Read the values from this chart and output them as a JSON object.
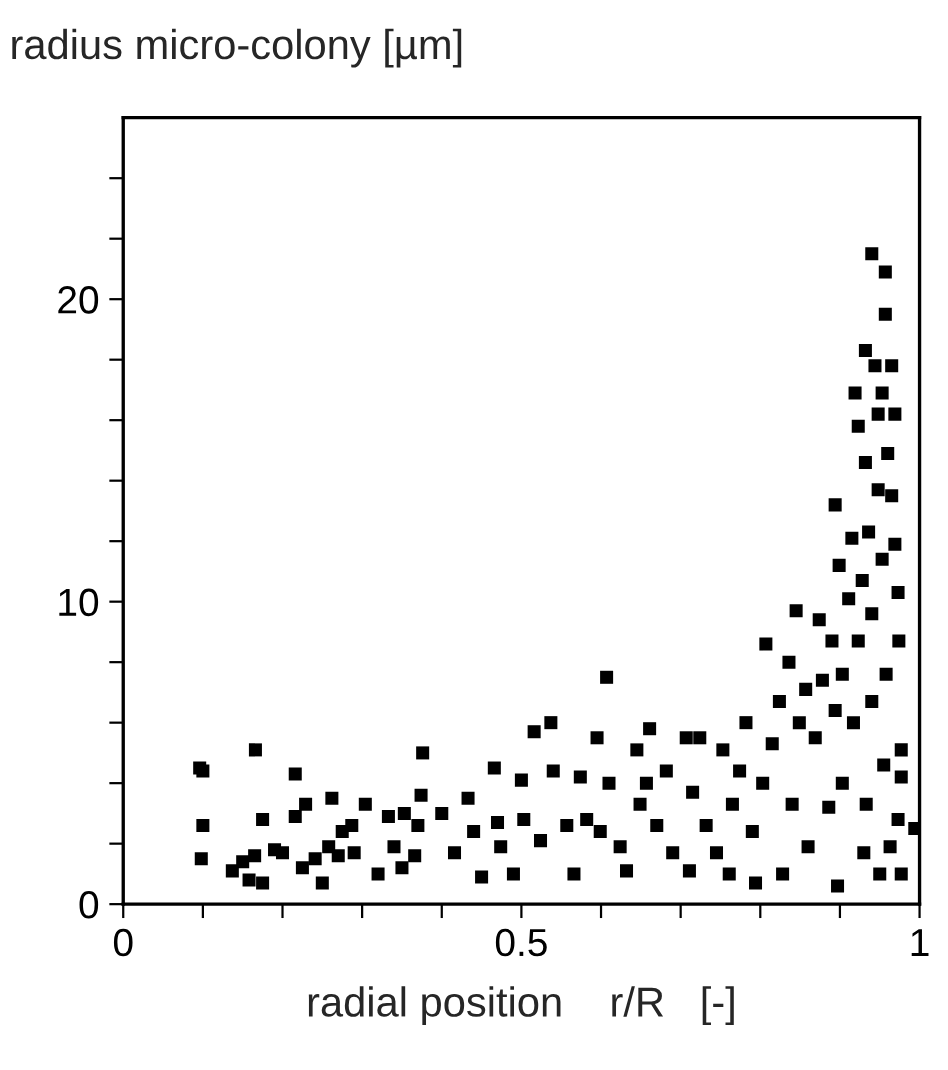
{
  "chart_data": {
    "type": "scatter",
    "ylabel": "radius micro-colony [µm]",
    "xlabel": "radial position    r/R   [-]",
    "marker": "square",
    "grid": false,
    "legend": false,
    "xlim": [
      0,
      1
    ],
    "ylim": [
      0,
      26
    ],
    "xticks": [
      0,
      {
        "value": 0.1,
        "label": null
      },
      {
        "value": 0.2,
        "label": null
      },
      {
        "value": 0.3,
        "label": null
      },
      {
        "value": 0.4,
        "label": null
      },
      0.5,
      {
        "value": 0.6,
        "label": null
      },
      {
        "value": 0.7,
        "label": null
      },
      {
        "value": 0.8,
        "label": null
      },
      {
        "value": 0.9,
        "label": null
      },
      1
    ],
    "yticks": [
      0,
      {
        "value": 2,
        "label": null
      },
      {
        "value": 4,
        "label": null
      },
      {
        "value": 6,
        "label": null
      },
      {
        "value": 8,
        "label": null
      },
      10,
      {
        "value": 12,
        "label": null
      },
      {
        "value": 14,
        "label": null
      },
      {
        "value": 16,
        "label": null
      },
      {
        "value": 18,
        "label": null
      },
      20,
      {
        "value": 22,
        "label": null
      },
      {
        "value": 24,
        "label": null
      }
    ],
    "series": [
      {
        "color": "#000000",
        "x": [
          0.096,
          0.1,
          0.1,
          0.098,
          0.166,
          0.175,
          0.137,
          0.15,
          0.158,
          0.175,
          0.165,
          0.19,
          0.2,
          0.216,
          0.216,
          0.229,
          0.225,
          0.241,
          0.25,
          0.262,
          0.258,
          0.27,
          0.275,
          0.287,
          0.29,
          0.304,
          0.32,
          0.333,
          0.34,
          0.35,
          0.366,
          0.353,
          0.374,
          0.376,
          0.37,
          0.4,
          0.416,
          0.433,
          0.44,
          0.45,
          0.466,
          0.47,
          0.474,
          0.49,
          0.5,
          0.503,
          0.516,
          0.524,
          0.537,
          0.54,
          0.557,
          0.566,
          0.574,
          0.582,
          0.595,
          0.599,
          0.607,
          0.61,
          0.624,
          0.632,
          0.645,
          0.649,
          0.661,
          0.657,
          0.67,
          0.682,
          0.69,
          0.707,
          0.711,
          0.715,
          0.724,
          0.732,
          0.745,
          0.753,
          0.761,
          0.765,
          0.774,
          0.782,
          0.79,
          0.794,
          0.803,
          0.807,
          0.815,
          0.824,
          0.828,
          0.836,
          0.84,
          0.845,
          0.849,
          0.857,
          0.86,
          0.869,
          0.874,
          0.878,
          0.886,
          0.89,
          0.894,
          0.894,
          0.897,
          0.899,
          0.903,
          0.903,
          0.911,
          0.915,
          0.917,
          0.919,
          0.923,
          0.923,
          0.928,
          0.93,
          0.932,
          0.932,
          0.933,
          0.936,
          0.94,
          0.94,
          0.94,
          0.944,
          0.948,
          0.948,
          0.95,
          0.953,
          0.953,
          0.955,
          0.957,
          0.957,
          0.958,
          0.96,
          0.963,
          0.965,
          0.965,
          0.969,
          0.969,
          0.973,
          0.973,
          0.974,
          0.977,
          0.977,
          0.977,
          0.994
        ],
        "values": [
          4.5,
          4.4,
          2.6,
          1.5,
          5.1,
          2.8,
          1.1,
          1.4,
          0.8,
          0.7,
          1.6,
          1.8,
          1.7,
          4.3,
          2.9,
          3.3,
          1.2,
          1.5,
          0.7,
          3.5,
          1.9,
          1.6,
          2.4,
          2.6,
          1.7,
          3.3,
          1.0,
          2.9,
          1.9,
          1.2,
          1.6,
          3.0,
          3.6,
          5.0,
          2.6,
          3.0,
          1.7,
          3.5,
          2.4,
          0.9,
          4.5,
          2.7,
          1.9,
          1.0,
          4.1,
          2.8,
          5.7,
          2.1,
          6.0,
          4.4,
          2.6,
          1.0,
          4.2,
          2.8,
          5.5,
          2.4,
          7.5,
          4.0,
          1.9,
          1.1,
          5.1,
          3.3,
          5.8,
          4.0,
          2.6,
          4.4,
          1.7,
          5.5,
          1.1,
          3.7,
          5.5,
          2.6,
          1.7,
          5.1,
          1.0,
          3.3,
          4.4,
          6.0,
          2.4,
          0.7,
          4.0,
          8.6,
          5.3,
          6.7,
          1.0,
          8.0,
          3.3,
          9.7,
          6.0,
          7.1,
          1.9,
          5.5,
          9.4,
          7.4,
          3.2,
          8.7,
          13.2,
          6.4,
          0.6,
          11.2,
          7.6,
          4.0,
          10.1,
          12.1,
          6.0,
          16.9,
          15.8,
          8.7,
          10.7,
          1.7,
          18.3,
          14.6,
          3.3,
          12.3,
          21.5,
          9.6,
          6.7,
          17.8,
          16.2,
          13.7,
          1.0,
          16.9,
          11.4,
          4.6,
          20.9,
          19.5,
          7.6,
          14.9,
          1.9,
          17.8,
          13.5,
          16.2,
          11.9,
          10.3,
          2.8,
          8.7,
          5.1,
          4.2,
          1.0,
          2.5
        ]
      }
    ]
  }
}
